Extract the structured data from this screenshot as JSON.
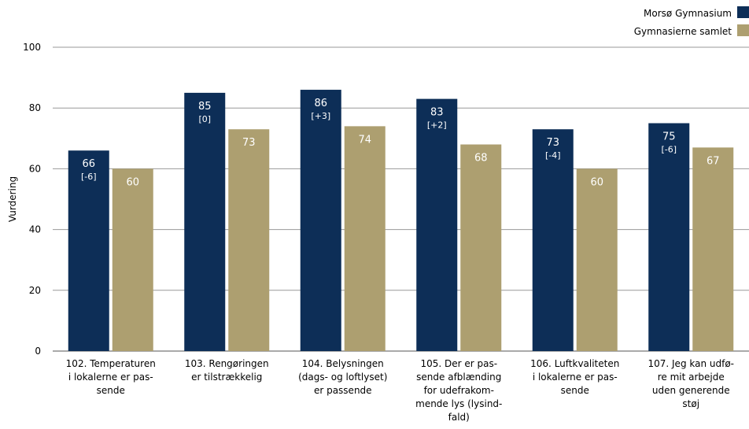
{
  "chart_data": {
    "type": "bar",
    "ylabel": "Vurdering",
    "ylim": [
      0,
      100
    ],
    "yticks": [
      0,
      20,
      40,
      60,
      80,
      100
    ],
    "grid": true,
    "legend_position": "top-right",
    "categories": [
      [
        "102. Temperaturen",
        "i lokalerne er pas-",
        "sende"
      ],
      [
        "103. Rengøringen",
        "er tilstrækkelig"
      ],
      [
        "104. Belysningen",
        "(dags- og loftlyset)",
        "er passende"
      ],
      [
        "105. Der er pas-",
        "sende afblænding",
        "for udefrakom-",
        "mende lys (lysind-",
        "fald)"
      ],
      [
        "106. Luftkvaliteten",
        "i lokalerne er pas-",
        "sende"
      ],
      [
        "107. Jeg kan udfø-",
        "re mit arbejde",
        "uden generende",
        "støj"
      ]
    ],
    "series": [
      {
        "name": "Morsø Gymnasium",
        "color": "#0d2e57",
        "values": [
          66,
          85,
          86,
          83,
          73,
          75
        ],
        "diffs": [
          "[-6]",
          "[0]",
          "[+3]",
          "[+2]",
          "[-4]",
          "[-6]"
        ]
      },
      {
        "name": "Gymnasierne samlet",
        "color": "#ad9f70",
        "values": [
          60,
          73,
          74,
          68,
          60,
          67
        ]
      }
    ]
  }
}
